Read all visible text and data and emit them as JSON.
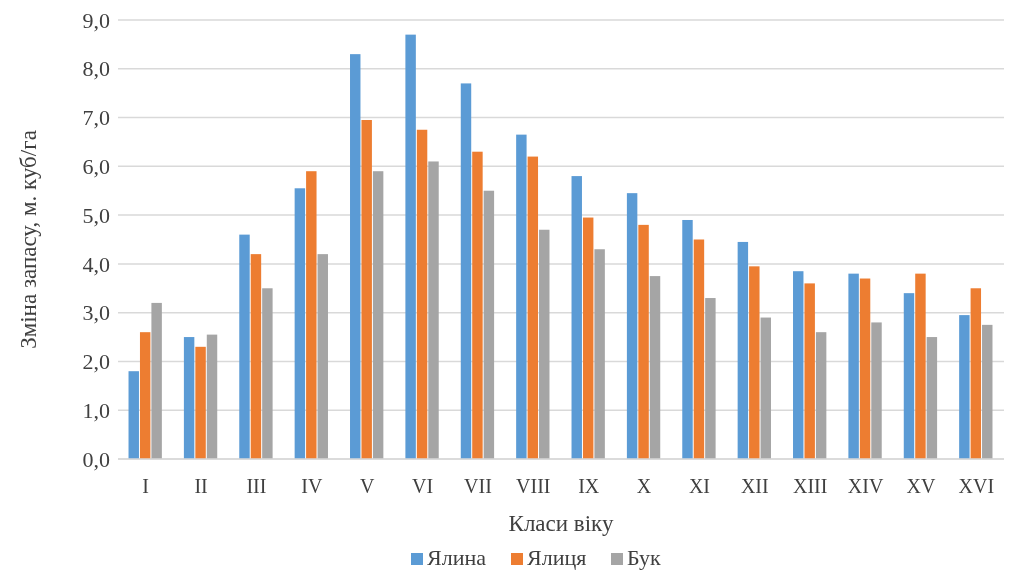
{
  "chart_data": {
    "type": "bar",
    "xlabel": "Класи віку",
    "ylabel": "Зміна запасу, м. куб/га",
    "categories": [
      "I",
      "II",
      "III",
      "IV",
      "V",
      "VI",
      "VII",
      "VIII",
      "IX",
      "X",
      "XI",
      "XII",
      "XIII",
      "XIV",
      "XV",
      "XVI"
    ],
    "series": [
      {
        "name": "Ялина",
        "color": "#5b9bd5",
        "values": [
          1.8,
          2.5,
          4.6,
          5.55,
          8.3,
          8.7,
          7.7,
          6.65,
          5.8,
          5.45,
          4.9,
          4.45,
          3.85,
          3.8,
          3.4,
          2.95
        ]
      },
      {
        "name": "Ялиця",
        "color": "#ed7d31",
        "values": [
          2.6,
          2.3,
          4.2,
          5.9,
          6.95,
          6.75,
          6.3,
          6.2,
          4.95,
          4.8,
          4.5,
          3.95,
          3.6,
          3.7,
          3.8,
          3.5
        ]
      },
      {
        "name": "Бук",
        "color": "#a5a5a5",
        "values": [
          3.2,
          2.55,
          3.5,
          4.2,
          5.9,
          6.1,
          5.5,
          4.7,
          4.3,
          3.75,
          3.3,
          2.9,
          2.6,
          2.8,
          2.5,
          2.75
        ]
      }
    ],
    "ylim": [
      0,
      9
    ],
    "yticks": [
      {
        "value": 0,
        "label": "0,0"
      },
      {
        "value": 1,
        "label": "1,0"
      },
      {
        "value": 2,
        "label": "2,0"
      },
      {
        "value": 3,
        "label": "3,0"
      },
      {
        "value": 4,
        "label": "4,0"
      },
      {
        "value": 5,
        "label": "5,0"
      },
      {
        "value": 6,
        "label": "6,0"
      },
      {
        "value": 7,
        "label": "7,0"
      },
      {
        "value": 8,
        "label": "8,0"
      },
      {
        "value": 9,
        "label": "9,0"
      }
    ],
    "grid": "y",
    "legend": "bottom"
  }
}
